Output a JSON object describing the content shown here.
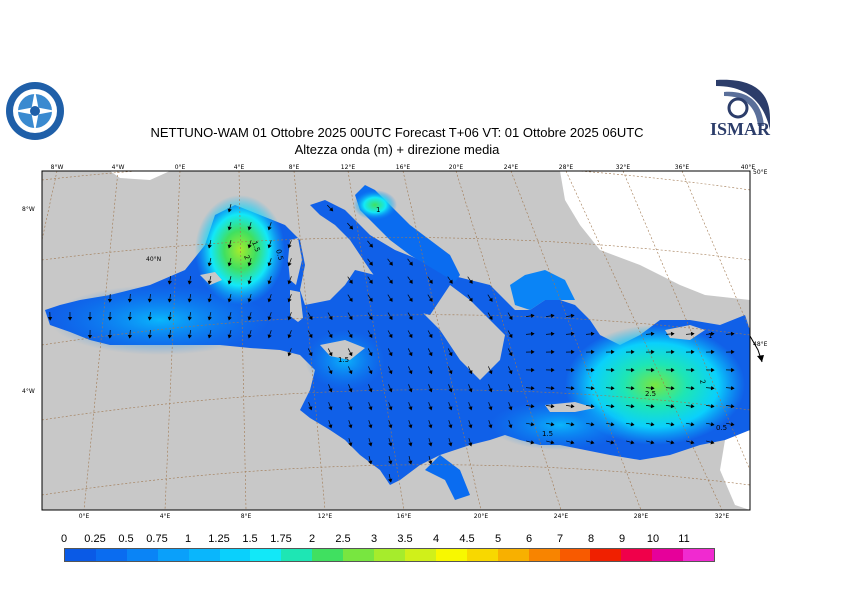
{
  "header": {
    "title_line1": "NETTUNO-WAM  01  Ottobre  2025 00UTC Forecast T+06 VT: 01  Ottobre  2025 06UTC",
    "title_line2": "Altezza onda (m) + direzione media"
  },
  "logos": {
    "left": "meteorological-service-logo",
    "right_text": "ISMAR"
  },
  "top_ticks": [
    "8°W",
    "4°W",
    "0°E",
    "4°E",
    "8°E",
    "12°E",
    "16°E",
    "20°E",
    "24°E",
    "28°E",
    "32°E",
    "36°E",
    "40°E"
  ],
  "bottom_ticks": [
    "0°E",
    "4°E",
    "8°E",
    "12°E",
    "16°E",
    "20°E",
    "24°E",
    "28°E",
    "32°E"
  ],
  "left_ticks": [
    "8°W",
    "4°W"
  ],
  "right_ticks": [
    "50°E",
    "48°E"
  ],
  "lat_label": "40°N",
  "contour_labels": [
    "1.5",
    "2",
    "0.5",
    "1",
    "1.5",
    "2",
    "2.5",
    "1.5",
    "1",
    "0.5"
  ],
  "colorscale": {
    "labels": [
      "0",
      "0.25",
      "0.5",
      "0.75",
      "1",
      "1.25",
      "1.5",
      "1.75",
      "2",
      "2.5",
      "3",
      "3.5",
      "4",
      "4.5",
      "5",
      "6",
      "7",
      "8",
      "9",
      "10",
      "11"
    ],
    "colors": [
      "#0a5ae6",
      "#0a6cf0",
      "#0a84f6",
      "#0aa0fa",
      "#0ab6fc",
      "#0ad0fc",
      "#12e8f8",
      "#1ee6b4",
      "#40e060",
      "#78e640",
      "#a6ec2c",
      "#d0f01a",
      "#f8f800",
      "#f8d800",
      "#f8b000",
      "#f88400",
      "#f85a00",
      "#f02000",
      "#f0004a",
      "#e6009a",
      "#f02ad0"
    ]
  },
  "map": {
    "land_color": "#c8c8c8",
    "sea_base_color": "#1060e8",
    "graticule_color": "#a07850"
  }
}
